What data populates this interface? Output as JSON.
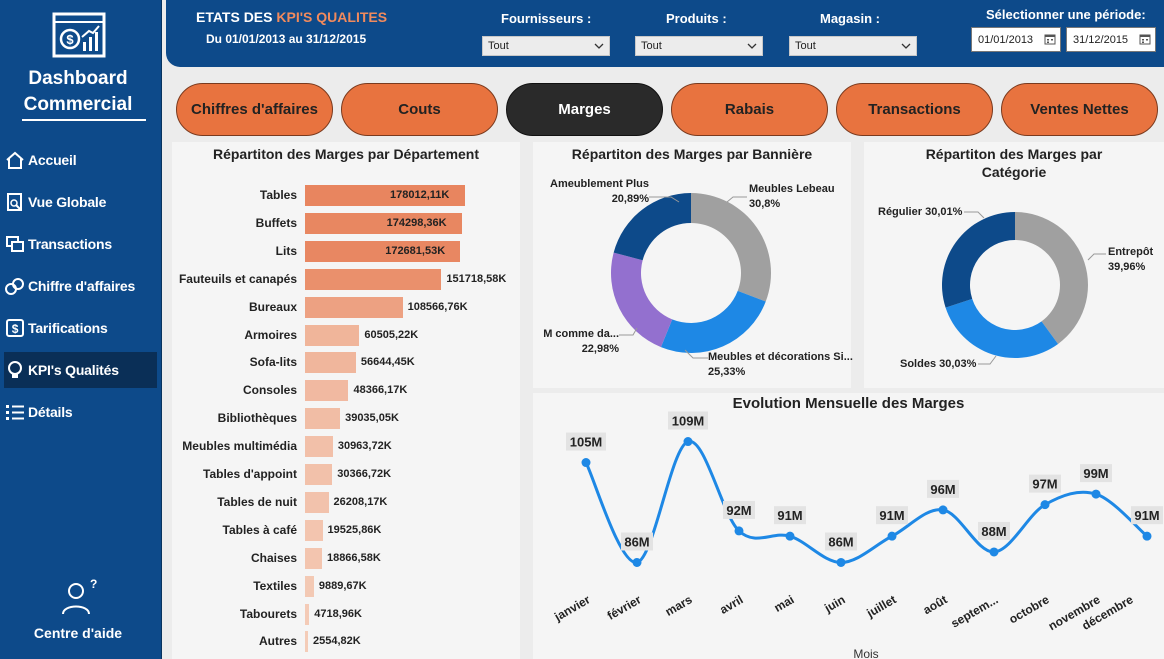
{
  "sidebar": {
    "brand_line1": "Dashboard",
    "brand_line2": "Commercial",
    "items": [
      {
        "label": "Accueil",
        "icon": "home-icon"
      },
      {
        "label": "Vue Globale",
        "icon": "report-icon"
      },
      {
        "label": "Transactions",
        "icon": "transactions-icon"
      },
      {
        "label": "Chiffre d'affaires",
        "icon": "coins-icon"
      },
      {
        "label": "Tarifications",
        "icon": "dollar-icon"
      },
      {
        "label": "KPI's Qualités",
        "icon": "bulb-icon"
      },
      {
        "label": "Détails",
        "icon": "list-icon"
      }
    ],
    "active_index": 5,
    "help_label": "Centre d'aide"
  },
  "header": {
    "title_prefix": "ETATS DES ",
    "title_accent": "KPI'S QUALITES",
    "subtitle": "Du 01/01/2013 au 31/12/2015",
    "filters": [
      {
        "label": "Fournisseurs :",
        "value": "Tout"
      },
      {
        "label": "Produits :",
        "value": "Tout"
      },
      {
        "label": "Magasin :",
        "value": "Tout"
      }
    ],
    "period_label": "Sélectionner une période:",
    "date_start": "01/01/2013",
    "date_end": "31/12/2015"
  },
  "tabs": [
    {
      "label": "Chiffres d'affaires"
    },
    {
      "label": "Couts"
    },
    {
      "label": "Marges"
    },
    {
      "label": "Rabais"
    },
    {
      "label": "Transactions"
    },
    {
      "label": "Ventes Nettes"
    }
  ],
  "active_tab": 2,
  "colors": {
    "sidebar": "#0d4a8a",
    "accent_orange": "#e8733f",
    "line": "#1e88e5"
  },
  "chart_data": [
    {
      "type": "bar",
      "orientation": "horizontal",
      "title": "Répartiton des Marges par Département",
      "categories": [
        "Tables",
        "Buffets",
        "Lits",
        "Fauteuils et canapés",
        "Bureaux",
        "Armoires",
        "Sofa-lits",
        "Consoles",
        "Bibliothèques",
        "Meubles multimédia",
        "Tables d'appoint",
        "Tables de nuit",
        "Tables à café",
        "Chaises",
        "Textiles",
        "Tabourets",
        "Autres"
      ],
      "values": [
        178012.11,
        174298.36,
        172681.53,
        151718.58,
        108566.76,
        60505.22,
        56644.45,
        48366.17,
        39035.05,
        30963.72,
        30366.72,
        26208.17,
        19525.86,
        18866.58,
        9889.67,
        4718.96,
        2554.82
      ],
      "data_labels": [
        "178012,11K",
        "174298,36K",
        "172681,53K",
        "151718,58K",
        "108566,76K",
        "60505,22K",
        "56644,45K",
        "48366,17K",
        "39035,05K",
        "30963,72K",
        "30366,72K",
        "26208,17K",
        "19525,86K",
        "18866,58K",
        "9889,67K",
        "4718,96K",
        "2554,82K"
      ],
      "color_scale": [
        "#f4cdb9",
        "#e8855f"
      ]
    },
    {
      "type": "pie",
      "donut": true,
      "title": "Répartiton des Marges par Bannière",
      "slices": [
        {
          "label": "Meubles Lebeau",
          "pct_label": "30,8%",
          "value": 30.8,
          "color": "#a0a0a0"
        },
        {
          "label": "Meubles et décorations Si...",
          "pct_label": "25,33%",
          "value": 25.33,
          "color": "#1e88e5"
        },
        {
          "label": "M comme da...",
          "pct_label": "22,98%",
          "value": 22.98,
          "color": "#9370cf"
        },
        {
          "label": "Ameublement Plus",
          "pct_label": "20,89%",
          "value": 20.89,
          "color": "#0d4a8a"
        }
      ]
    },
    {
      "type": "pie",
      "donut": true,
      "title": "Répartiton des Marges par Catégorie",
      "slices": [
        {
          "label": "Entrepôt",
          "pct_label": "39,96%",
          "value": 39.96,
          "color": "#a0a0a0"
        },
        {
          "label": "Soldes",
          "pct_label": "30,03%",
          "value": 30.03,
          "color": "#1e88e5"
        },
        {
          "label": "Régulier",
          "pct_label": "30,01%",
          "value": 30.01,
          "color": "#0d4a8a"
        }
      ]
    },
    {
      "type": "line",
      "title": "Evolution Mensuelle des Marges",
      "xlabel": "Mois",
      "categories": [
        "janvier",
        "février",
        "mars",
        "avril",
        "mai",
        "juin",
        "juillet",
        "août",
        "septem...",
        "octobre",
        "novembre",
        "décembre"
      ],
      "values": [
        105,
        86,
        109,
        92,
        91,
        86,
        91,
        96,
        88,
        97,
        99,
        91
      ],
      "data_labels": [
        "105M",
        "86M",
        "109M",
        "92M",
        "91M",
        "86M",
        "91M",
        "96M",
        "88M",
        "97M",
        "99M",
        "91M"
      ],
      "ylim": [
        84,
        111
      ]
    }
  ]
}
